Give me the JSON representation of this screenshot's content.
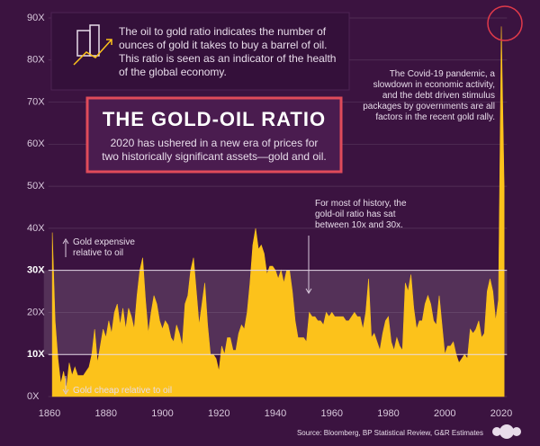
{
  "chart_data": {
    "type": "area",
    "title": "THE GOLD-OIL RATIO",
    "subtitle": "2020 has ushered in a new era of prices for two historically significant assets—gold and oil.",
    "info_text": "The oil to gold ratio indicates the number of ounces of gold it takes to buy a barrel of oil. This ratio is seen as an indicator of the health of the global economy.",
    "annotations": [
      "The Covid-19 pandemic, a slowdown in economic activity, and the debt driven stimulus packages by governments are all factors in the recent gold rally.",
      "For most of history, the gold-oil ratio has sat between 10x and 30x.",
      "Gold expensive relative to oil",
      "Gold cheap relative to oil"
    ],
    "source": "Source: Bloomberg, BP Statistical Review, G&R Estimates",
    "color": "#fcc21b",
    "highlight_range": [
      10,
      30
    ],
    "grid": true,
    "xlim": [
      1858,
      2022
    ],
    "xticks": [
      1860,
      1880,
      1900,
      1920,
      1940,
      1960,
      1980,
      2000,
      2020
    ],
    "ylim": [
      0,
      90
    ],
    "yticks": [
      {
        "value": 0,
        "label": "0X"
      },
      {
        "value": 10,
        "label": "10X"
      },
      {
        "value": 20,
        "label": "20X"
      },
      {
        "value": 30,
        "label": "30X"
      },
      {
        "value": 40,
        "label": "40X"
      },
      {
        "value": 50,
        "label": "50X"
      },
      {
        "value": 60,
        "label": "60X"
      },
      {
        "value": 70,
        "label": "70X"
      },
      {
        "value": 80,
        "label": "80X"
      },
      {
        "value": 90,
        "label": "90X"
      }
    ],
    "x": [
      1861,
      1862,
      1863,
      1864,
      1865,
      1866,
      1867,
      1868,
      1869,
      1870,
      1871,
      1872,
      1873,
      1874,
      1875,
      1876,
      1877,
      1878,
      1879,
      1880,
      1881,
      1882,
      1883,
      1884,
      1885,
      1886,
      1887,
      1888,
      1889,
      1890,
      1891,
      1892,
      1893,
      1894,
      1895,
      1896,
      1897,
      1898,
      1899,
      1900,
      1901,
      1902,
      1903,
      1904,
      1905,
      1906,
      1907,
      1908,
      1909,
      1910,
      1911,
      1912,
      1913,
      1914,
      1915,
      1916,
      1917,
      1918,
      1919,
      1920,
      1921,
      1922,
      1923,
      1924,
      1925,
      1926,
      1927,
      1928,
      1929,
      1930,
      1931,
      1932,
      1933,
      1934,
      1935,
      1936,
      1937,
      1938,
      1939,
      1940,
      1941,
      1942,
      1943,
      1944,
      1945,
      1946,
      1947,
      1948,
      1949,
      1950,
      1951,
      1952,
      1953,
      1954,
      1955,
      1956,
      1957,
      1958,
      1959,
      1960,
      1961,
      1962,
      1963,
      1964,
      1965,
      1966,
      1967,
      1968,
      1969,
      1970,
      1971,
      1972,
      1973,
      1974,
      1975,
      1976,
      1977,
      1978,
      1979,
      1980,
      1981,
      1982,
      1983,
      1984,
      1985,
      1986,
      1987,
      1988,
      1989,
      1990,
      1991,
      1992,
      1993,
      1994,
      1995,
      1996,
      1997,
      1998,
      1999,
      2000,
      2001,
      2002,
      2003,
      2004,
      2005,
      2006,
      2007,
      2008,
      2009,
      2010,
      2011,
      2012,
      2013,
      2014,
      2015,
      2016,
      2017,
      2018,
      2019,
      2020,
      2021
    ],
    "values": [
      39,
      18,
      9,
      3,
      6,
      2,
      8,
      5,
      7,
      5,
      5,
      5,
      6,
      7,
      10,
      16,
      8,
      12,
      16,
      14,
      18,
      15,
      20,
      22,
      17,
      21,
      16,
      21,
      19,
      16,
      24,
      30,
      33,
      23,
      15,
      20,
      24,
      22,
      18,
      16,
      18,
      17,
      14,
      13,
      17,
      15,
      12,
      22,
      24,
      30,
      33,
      25,
      17,
      22,
      27,
      17,
      10,
      10,
      9,
      6,
      12,
      10,
      14,
      14,
      11,
      11,
      15,
      17,
      16,
      20,
      27,
      36,
      40,
      35,
      36,
      34,
      29,
      31,
      31,
      30,
      28,
      30,
      27,
      30,
      30,
      25,
      18,
      14,
      14,
      14,
      13,
      20,
      19,
      19,
      18,
      18,
      17,
      20,
      19,
      20,
      19,
      19,
      19,
      19,
      18,
      18,
      19,
      20,
      19,
      19,
      16,
      20,
      28,
      14,
      15,
      13,
      11,
      15,
      18,
      19,
      13,
      11,
      14,
      12,
      11,
      27,
      25,
      29,
      21,
      16,
      18,
      18,
      22,
      24,
      22,
      18,
      17,
      24,
      17,
      10,
      12,
      12,
      13,
      10,
      8,
      9,
      10,
      9,
      16,
      15,
      16,
      18,
      14,
      15,
      25,
      28,
      25,
      18,
      23,
      88,
      50
    ]
  }
}
